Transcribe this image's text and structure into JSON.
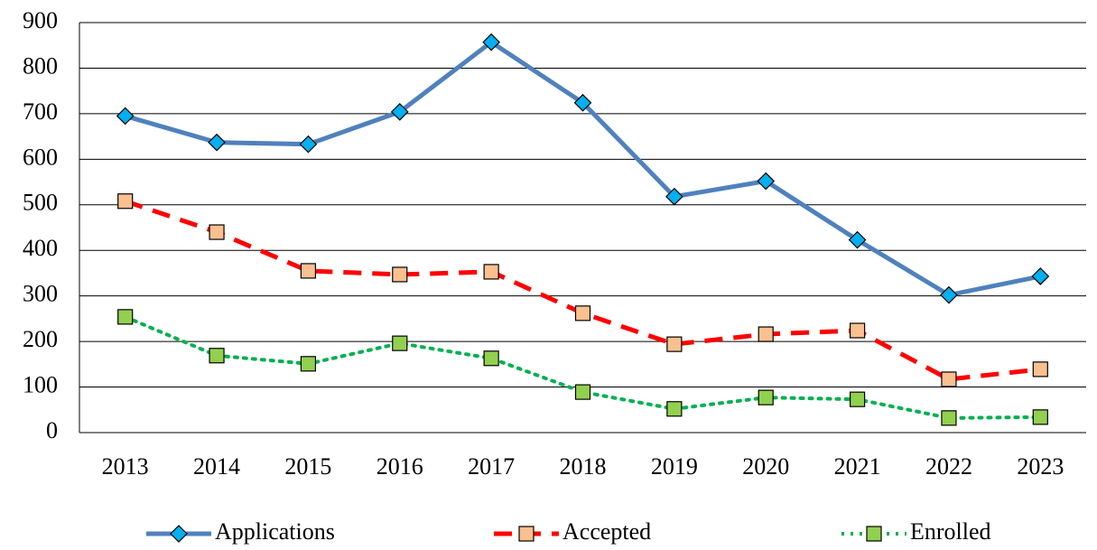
{
  "chart_data": {
    "type": "line",
    "categories": [
      "2013",
      "2014",
      "2015",
      "2016",
      "2017",
      "2018",
      "2019",
      "2020",
      "2021",
      "2022",
      "2023"
    ],
    "series": [
      {
        "name": "Applications",
        "color": "#4f81bd",
        "marker_color": "#00b0f0",
        "marker": "diamond",
        "line_style": "solid",
        "values": [
          695,
          637,
          633,
          704,
          857,
          724,
          518,
          552,
          423,
          302,
          343
        ]
      },
      {
        "name": "Accepted",
        "color": "#ff0000",
        "marker_color": "#fac090",
        "marker": "square",
        "line_style": "dashed",
        "values": [
          508,
          440,
          355,
          347,
          353,
          262,
          194,
          216,
          224,
          117,
          139
        ]
      },
      {
        "name": "Enrolled",
        "color": "#00b050",
        "marker_color": "#92d050",
        "marker": "square",
        "line_style": "dotted",
        "values": [
          254,
          169,
          151,
          196,
          163,
          89,
          52,
          77,
          73,
          32,
          34
        ]
      }
    ],
    "ylim": [
      0,
      900
    ],
    "yticks": [
      0,
      100,
      200,
      300,
      400,
      500,
      600,
      700,
      800,
      900
    ],
    "grid": true,
    "legend": "bottom"
  }
}
